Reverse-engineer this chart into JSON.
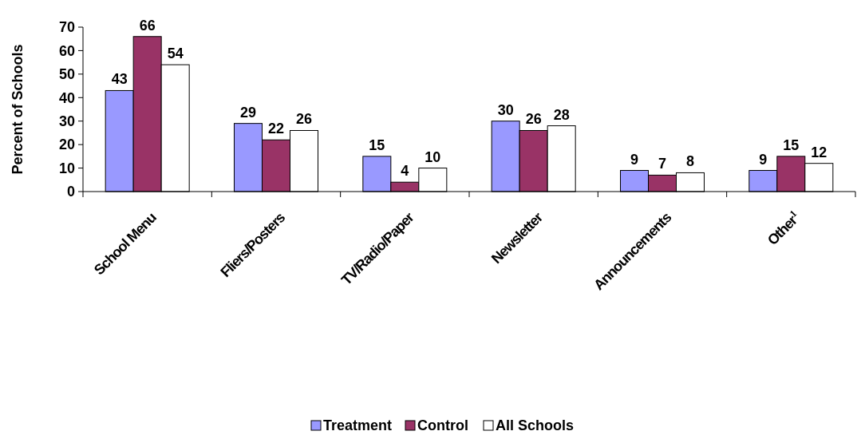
{
  "chart_data": {
    "type": "bar",
    "ylabel": "Percent of Schools",
    "categories": [
      "School Menu",
      "Fliers/Posters",
      "TV/Radio/Paper",
      "Newsletter",
      "Announcements",
      "Other$^{1}$"
    ],
    "series": [
      {
        "name": "Treatment",
        "color": "#9999ff",
        "values": [
          43,
          29,
          15,
          30,
          9,
          9
        ]
      },
      {
        "name": "Control",
        "color": "#993366",
        "values": [
          66,
          22,
          4,
          26,
          7,
          15
        ]
      },
      {
        "name": "All Schools",
        "color": "#ffffff",
        "values": [
          54,
          26,
          10,
          28,
          8,
          12
        ]
      }
    ],
    "ylim": [
      0,
      70
    ],
    "yticks": [
      0,
      10,
      20,
      30,
      40,
      50,
      60,
      70
    ],
    "grid": false,
    "legend": "bottom",
    "data_labels": true
  }
}
